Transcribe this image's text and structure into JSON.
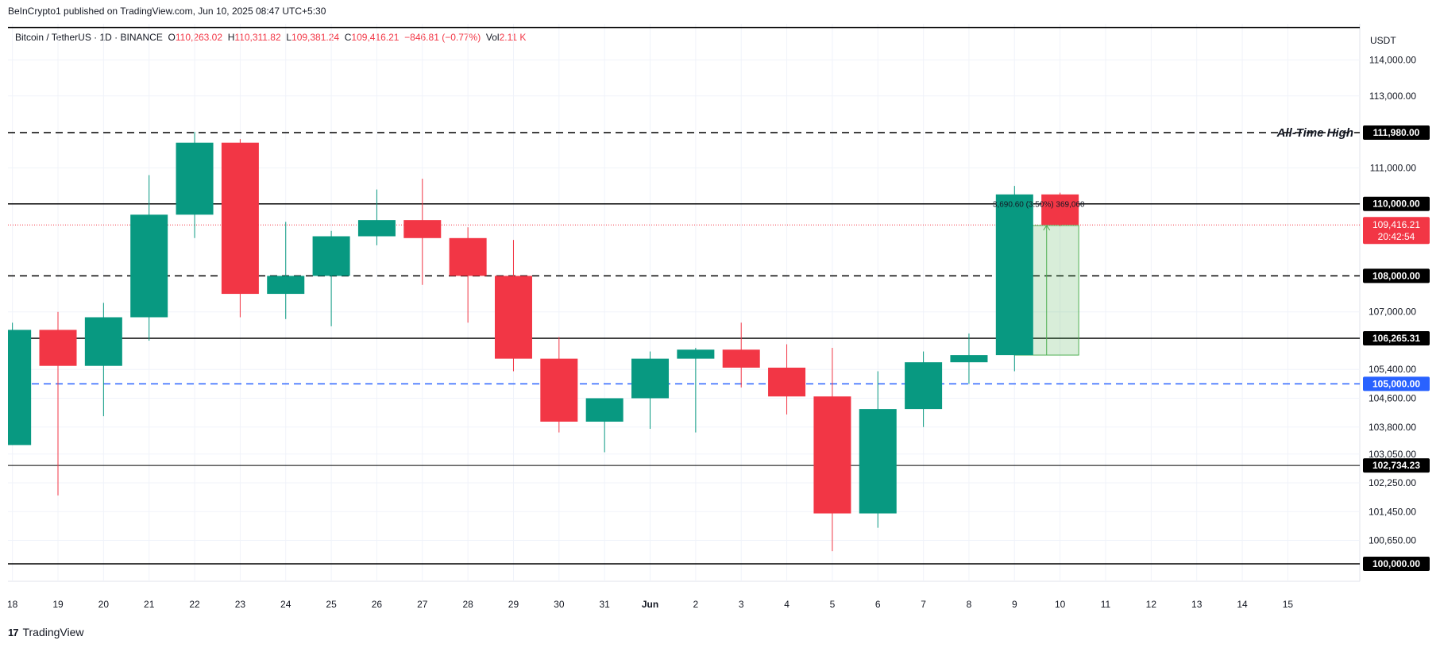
{
  "header": {
    "published": "BeInCrypto1 published on TradingView.com, Jun 10, 2025 08:47 UTC+5:30"
  },
  "legend": {
    "symbol": "Bitcoin / TetherUS · 1D · BINANCE",
    "open_label": "O",
    "open": "110,263.02",
    "high_label": "H",
    "high": "110,311.82",
    "low_label": "L",
    "low": "109,381.24",
    "close_label": "C",
    "close": "109,416.21",
    "change": "−846.81 (−0.77%)",
    "vol_label": "Vol",
    "vol": "2.11 K"
  },
  "footer": {
    "brand": "TradingView",
    "logo": "17"
  },
  "colors": {
    "up": "#089981",
    "down": "#f23645",
    "blue": "#2962ff",
    "measure": "#4caf50"
  },
  "chart_data": {
    "type": "candlestick",
    "currency_label": "USDT",
    "ylim": [
      99000,
      115000
    ],
    "y_ticks": [
      {
        "value": 114000,
        "label": "114,000.00"
      },
      {
        "value": 113000,
        "label": "113,000.00"
      },
      {
        "value": 111000,
        "label": "111,000.00"
      },
      {
        "value": 107000,
        "label": "107,000.00"
      },
      {
        "value": 105400,
        "label": "105,400.00"
      },
      {
        "value": 104600,
        "label": "104,600.00"
      },
      {
        "value": 103800,
        "label": "103,800.00"
      },
      {
        "value": 103050,
        "label": "103,050.00"
      },
      {
        "value": 102250,
        "label": "102,250.00"
      },
      {
        "value": 101450,
        "label": "101,450.00"
      },
      {
        "value": 100650,
        "label": "100,650.00"
      }
    ],
    "x_labels": [
      "18",
      "19",
      "20",
      "21",
      "22",
      "23",
      "24",
      "25",
      "26",
      "27",
      "28",
      "29",
      "30",
      "31",
      "Jun",
      "2",
      "3",
      "4",
      "5",
      "6",
      "7",
      "8",
      "9",
      "10",
      "11",
      "12",
      "13",
      "14",
      "15"
    ],
    "candles": [
      {
        "date": "18",
        "o": 103300,
        "h": 106700,
        "l": 103300,
        "c": 106500
      },
      {
        "date": "19",
        "o": 106500,
        "h": 107000,
        "l": 101900,
        "c": 105500
      },
      {
        "date": "20",
        "o": 105500,
        "h": 107250,
        "l": 104100,
        "c": 106850
      },
      {
        "date": "21",
        "o": 106850,
        "h": 110800,
        "l": 106200,
        "c": 109700
      },
      {
        "date": "22",
        "o": 109700,
        "h": 112000,
        "l": 109050,
        "c": 111700
      },
      {
        "date": "23",
        "o": 111700,
        "h": 111800,
        "l": 106850,
        "c": 107500
      },
      {
        "date": "24",
        "o": 107500,
        "h": 109500,
        "l": 106800,
        "c": 108000
      },
      {
        "date": "25",
        "o": 108000,
        "h": 109250,
        "l": 106600,
        "c": 109100
      },
      {
        "date": "26",
        "o": 109100,
        "h": 110400,
        "l": 108850,
        "c": 109550
      },
      {
        "date": "27",
        "o": 109550,
        "h": 110700,
        "l": 107750,
        "c": 109050
      },
      {
        "date": "28",
        "o": 109050,
        "h": 109350,
        "l": 106700,
        "c": 108000
      },
      {
        "date": "29",
        "o": 108000,
        "h": 109000,
        "l": 105350,
        "c": 105700
      },
      {
        "date": "30",
        "o": 105700,
        "h": 106300,
        "l": 103650,
        "c": 103950
      },
      {
        "date": "31",
        "o": 103950,
        "h": 104550,
        "l": 103100,
        "c": 104600
      },
      {
        "date": "Jun",
        "o": 104600,
        "h": 105900,
        "l": 103750,
        "c": 105700
      },
      {
        "date": "2",
        "o": 105700,
        "h": 106000,
        "l": 103650,
        "c": 105950
      },
      {
        "date": "3",
        "o": 105950,
        "h": 106700,
        "l": 104900,
        "c": 105450
      },
      {
        "date": "4",
        "o": 105450,
        "h": 106100,
        "l": 104150,
        "c": 104650
      },
      {
        "date": "5",
        "o": 104650,
        "h": 106000,
        "l": 100350,
        "c": 101400
      },
      {
        "date": "6",
        "o": 101400,
        "h": 105350,
        "l": 101000,
        "c": 104300
      },
      {
        "date": "7",
        "o": 104300,
        "h": 105900,
        "l": 103800,
        "c": 105600
      },
      {
        "date": "8",
        "o": 105600,
        "h": 106400,
        "l": 105000,
        "c": 105800
      },
      {
        "date": "9",
        "o": 105800,
        "h": 110500,
        "l": 105350,
        "c": 110263
      },
      {
        "date": "10",
        "o": 110263,
        "h": 110312,
        "l": 109381,
        "c": 109416
      }
    ],
    "levels": [
      {
        "value": 114900,
        "label": "",
        "style": "solid",
        "color": "#000000",
        "width": 1.5
      },
      {
        "value": 111980,
        "label": "111,980.00",
        "style": "dashed",
        "color": "#000000",
        "width": 1.5,
        "annotation": "All-Time High"
      },
      {
        "value": 110000,
        "label": "110,000.00",
        "style": "solid",
        "color": "#000000",
        "width": 1.5
      },
      {
        "value": 108000,
        "label": "108,000.00",
        "style": "dashed",
        "color": "#000000",
        "width": 1.5
      },
      {
        "value": 106265.31,
        "label": "106,265.31",
        "style": "solid",
        "color": "#000000",
        "width": 1.5
      },
      {
        "value": 105000,
        "label": "105,000.00",
        "style": "dashed",
        "color": "#2962ff",
        "width": 1.5
      },
      {
        "value": 102734.23,
        "label": "102,734.23",
        "style": "solid",
        "color": "#000000",
        "width": 1
      },
      {
        "value": 100000,
        "label": "100,000.00",
        "style": "solid",
        "color": "#000000",
        "width": 1.5
      }
    ],
    "current_price": {
      "value": 109416.21,
      "label": "109,416.21",
      "countdown": "20:42:54"
    },
    "measure": {
      "from_date": "9",
      "to_date": "10",
      "low": 105800,
      "high": 109400,
      "label": "3,690.60 (3.50%) 369,060"
    }
  }
}
